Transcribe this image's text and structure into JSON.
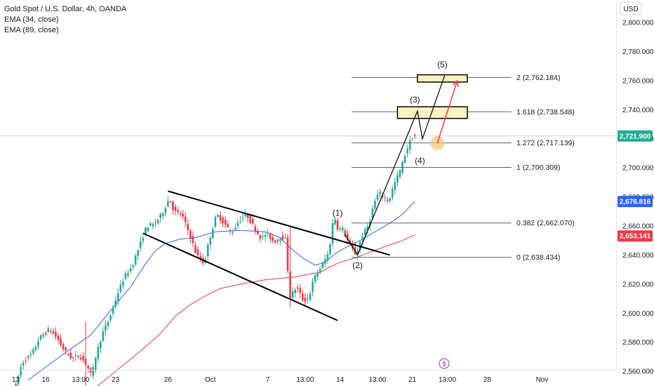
{
  "legend": {
    "symbol": "Gold Spot / U.S. Dollar, 4h, OANDA",
    "ema1": "EMA (34, close)",
    "ema2": "EMA (89, close)"
  },
  "currency": "USD",
  "colors": {
    "up": "#26a69a",
    "upBright": "#22ab94",
    "down": "#f23645",
    "ema34": "#2962ff",
    "ema89": "#f23645",
    "lastPriceBadge": "#22ab94",
    "ema34Badge": "#2962ff",
    "ema89Badge": "#f23645",
    "zone": "#fff2c2",
    "arrow": "#f23645",
    "marker": "#ffc078"
  },
  "chart_data": {
    "type": "candlestick",
    "ylim": [
      2545,
      2818
    ],
    "y_ticks": [
      2560,
      2580,
      2600,
      2620,
      2640,
      2660,
      2680,
      2700,
      2720,
      2740,
      2760,
      2780,
      2800
    ],
    "y_tick_labels": [
      "2,560.000",
      "2,580.000",
      "2,600.000",
      "2,620.000",
      "2,640.000",
      "2,660.000",
      "2,680.000",
      "2,700.000",
      "2,720.000",
      "2,740.000",
      "2,760.000",
      "2,780.000",
      "2,800.000"
    ],
    "x_ticks": [
      {
        "bar": 0,
        "label": "13"
      },
      {
        "bar": 12,
        "label": "16"
      },
      {
        "bar": 26,
        "label": "13:00"
      },
      {
        "bar": 40,
        "label": "23"
      },
      {
        "bar": 61,
        "label": "26"
      },
      {
        "bar": 78,
        "label": "Oct"
      },
      {
        "bar": 101,
        "label": "7"
      },
      {
        "bar": 116,
        "label": "13:00"
      },
      {
        "bar": 130,
        "label": "14"
      },
      {
        "bar": 145,
        "label": "13:00"
      },
      {
        "bar": 159,
        "label": "21"
      },
      {
        "bar": 173,
        "label": "13:00"
      },
      {
        "bar": 189,
        "label": "28"
      },
      {
        "bar": 211,
        "label": "Nov"
      }
    ],
    "last_price": "2,721.900",
    "ema34_value": "2,676.816",
    "ema89_value": "2,653.141",
    "fib_levels": [
      {
        "label": "2 (2,762.184)",
        "price": 2762.184
      },
      {
        "label": "1.618 (2,738.548)",
        "price": 2738.548
      },
      {
        "label": "1.272 (2,717.139)",
        "price": 2717.139
      },
      {
        "label": "1 (2,700.309)",
        "price": 2700.309
      },
      {
        "label": "0.382 (2,662.070)",
        "price": 2662.07
      },
      {
        "label": "0 (2,638.434)",
        "price": 2638.434
      }
    ],
    "waves": [
      {
        "label": "(1)",
        "bar": 129,
        "price": 2669
      },
      {
        "label": "(2)",
        "bar": 137,
        "price": 2633
      },
      {
        "label": "(3)",
        "bar": 160,
        "price": 2747
      },
      {
        "label": "(4)",
        "bar": 162,
        "price": 2705
      },
      {
        "label": "(5)",
        "bar": 171,
        "price": 2771
      }
    ],
    "channel_upper": [
      [
        61,
        2684
      ],
      [
        150,
        2640
      ]
    ],
    "channel_lower": [
      [
        51,
        2655
      ],
      [
        129,
        2595
      ]
    ],
    "zones": [
      {
        "bar_from": 153,
        "bar_to": 181,
        "price_lo": 2734,
        "price_hi": 2742
      },
      {
        "bar_from": 161,
        "bar_to": 181,
        "price_lo": 2759,
        "price_hi": 2764
      }
    ],
    "projection_path": [
      [
        132,
        2654
      ],
      [
        137,
        2640
      ],
      [
        161,
        2739
      ],
      [
        163,
        2720
      ],
      [
        172,
        2764
      ]
    ],
    "arrow": {
      "from": [
        169,
        2717
      ],
      "to": [
        177,
        2760
      ]
    },
    "keypoints": [
      [
        0,
        2547
      ],
      [
        3,
        2566
      ],
      [
        7,
        2572
      ],
      [
        10,
        2583
      ],
      [
        14,
        2589
      ],
      [
        17,
        2583
      ],
      [
        20,
        2574
      ],
      [
        23,
        2569
      ],
      [
        26,
        2571
      ],
      [
        29,
        2564
      ],
      [
        31,
        2556
      ],
      [
        32,
        2567
      ],
      [
        35,
        2585
      ],
      [
        38,
        2596
      ],
      [
        41,
        2612
      ],
      [
        44,
        2625
      ],
      [
        47,
        2632
      ],
      [
        50,
        2646
      ],
      [
        53,
        2660
      ],
      [
        56,
        2661
      ],
      [
        59,
        2668
      ],
      [
        62,
        2679
      ],
      [
        64,
        2670
      ],
      [
        67,
        2668
      ],
      [
        70,
        2655
      ],
      [
        73,
        2640
      ],
      [
        76,
        2634
      ],
      [
        78,
        2650
      ],
      [
        81,
        2668
      ],
      [
        84,
        2662
      ],
      [
        87,
        2655
      ],
      [
        90,
        2664
      ],
      [
        93,
        2668
      ],
      [
        96,
        2659
      ],
      [
        99,
        2651
      ],
      [
        101,
        2655
      ],
      [
        104,
        2649
      ],
      [
        107,
        2653
      ],
      [
        109,
        2650
      ],
      [
        110,
        2610
      ],
      [
        113,
        2618
      ],
      [
        116,
        2608
      ],
      [
        118,
        2611
      ],
      [
        120,
        2624
      ],
      [
        123,
        2632
      ],
      [
        126,
        2642
      ],
      [
        128,
        2668
      ],
      [
        130,
        2656
      ],
      [
        131,
        2660
      ],
      [
        134,
        2648
      ],
      [
        137,
        2640
      ],
      [
        139,
        2652
      ],
      [
        142,
        2661
      ],
      [
        144,
        2675
      ],
      [
        146,
        2683
      ],
      [
        148,
        2680
      ],
      [
        150,
        2677
      ],
      [
        152,
        2688
      ],
      [
        155,
        2700
      ],
      [
        157,
        2712
      ],
      [
        159,
        2720
      ],
      [
        160,
        2722
      ]
    ],
    "ema34": [
      [
        5,
        2554
      ],
      [
        12,
        2563
      ],
      [
        20,
        2573
      ],
      [
        30,
        2585
      ],
      [
        40,
        2606
      ],
      [
        46,
        2618
      ],
      [
        52,
        2634
      ],
      [
        56,
        2643
      ],
      [
        60,
        2648
      ],
      [
        66,
        2651
      ],
      [
        72,
        2652
      ],
      [
        80,
        2656
      ],
      [
        90,
        2657
      ],
      [
        100,
        2656
      ],
      [
        106,
        2652
      ],
      [
        110,
        2645
      ],
      [
        115,
        2638
      ],
      [
        120,
        2633
      ],
      [
        124,
        2635
      ],
      [
        128,
        2641
      ],
      [
        132,
        2645
      ],
      [
        138,
        2650
      ],
      [
        144,
        2656
      ],
      [
        150,
        2662
      ],
      [
        155,
        2668
      ],
      [
        160,
        2677
      ]
    ],
    "ema89": [
      [
        30,
        2546
      ],
      [
        40,
        2560
      ],
      [
        50,
        2574
      ],
      [
        58,
        2586
      ],
      [
        64,
        2598
      ],
      [
        70,
        2606
      ],
      [
        76,
        2612
      ],
      [
        82,
        2617
      ],
      [
        90,
        2620
      ],
      [
        100,
        2623
      ],
      [
        106,
        2624
      ],
      [
        112,
        2625
      ],
      [
        118,
        2627
      ],
      [
        122,
        2628
      ],
      [
        126,
        2632
      ],
      [
        130,
        2635
      ],
      [
        136,
        2638
      ],
      [
        142,
        2642
      ],
      [
        150,
        2647
      ],
      [
        155,
        2650
      ],
      [
        160,
        2654
      ]
    ]
  }
}
